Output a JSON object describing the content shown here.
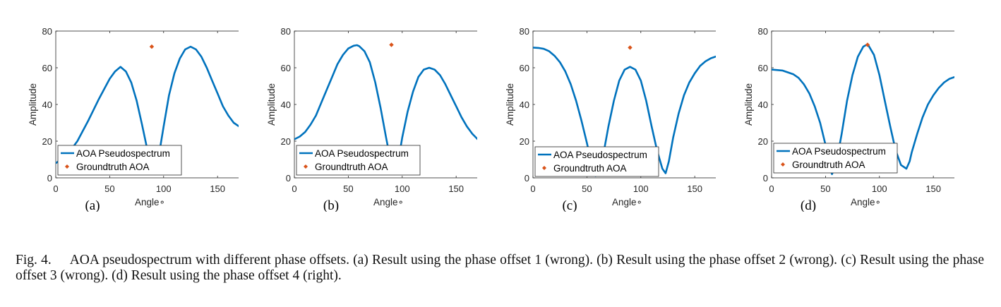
{
  "figure": {
    "number": "Fig. 4.",
    "caption": "AOA pseudospectrum with different phase offsets. (a) Result using the phase offset 1 (wrong). (b) Result using the phase offset 2 (wrong). (c) Result using the phase offset 3 (wrong). (d) Result using the phase offset 4 (right)."
  },
  "colors": {
    "spectrum": "#0072BD",
    "groundtruth": "#D95319",
    "axis": "#262626"
  },
  "chart_data": [
    {
      "type": "line",
      "sublabel": "(a)",
      "xlabel": "Angle∘",
      "ylabel": "Amplitude",
      "xlim": [
        0,
        180
      ],
      "ylim": [
        0,
        80
      ],
      "xticks": [
        0,
        50,
        100,
        150
      ],
      "yticks": [
        0,
        20,
        40,
        60,
        80
      ],
      "legend": {
        "placement": "bottom-left",
        "entries": [
          "AOA Pseudospectrum",
          "Groundtruth AOA"
        ]
      },
      "series": [
        {
          "name": "AOA Pseudospectrum",
          "x": [
            0,
            10,
            20,
            30,
            40,
            50,
            55,
            60,
            65,
            70,
            75,
            80,
            85,
            90,
            92,
            95,
            100,
            105,
            110,
            115,
            120,
            125,
            130,
            135,
            140,
            145,
            150,
            155,
            160,
            165,
            170,
            175,
            180
          ],
          "y": [
            8,
            12,
            20,
            31,
            43,
            54,
            58,
            60.5,
            58,
            52,
            42,
            29,
            15,
            3,
            2,
            10,
            28,
            45,
            57,
            65,
            70,
            71.5,
            70,
            66,
            60,
            53,
            46,
            39,
            34,
            30,
            28,
            27.5,
            27.5
          ]
        },
        {
          "name": "Groundtruth AOA",
          "x": [
            89
          ],
          "y": [
            71.5
          ]
        }
      ]
    },
    {
      "type": "line",
      "sublabel": "(b)",
      "xlabel": "Angle∘",
      "ylabel": "Amplitude",
      "xlim": [
        0,
        180
      ],
      "ylim": [
        0,
        80
      ],
      "xticks": [
        0,
        50,
        100,
        150
      ],
      "yticks": [
        0,
        20,
        40,
        60,
        80
      ],
      "legend": {
        "placement": "bottom-left",
        "entries": [
          "AOA Pseudospectrum",
          "Groundtruth AOA"
        ]
      },
      "series": [
        {
          "name": "AOA Pseudospectrum",
          "x": [
            0,
            5,
            10,
            15,
            20,
            25,
            30,
            35,
            40,
            45,
            50,
            55,
            58,
            60,
            65,
            70,
            75,
            80,
            85,
            90,
            93,
            96,
            100,
            105,
            110,
            115,
            120,
            125,
            130,
            135,
            140,
            145,
            150,
            155,
            160,
            165,
            170,
            175,
            180
          ],
          "y": [
            21,
            22.5,
            25,
            29,
            34,
            41,
            48,
            55,
            62,
            67,
            70.5,
            72,
            72.3,
            71.8,
            69,
            63,
            52,
            38,
            22,
            7,
            2,
            8,
            22,
            36,
            47,
            55,
            59,
            60,
            59,
            56,
            51,
            45,
            39,
            33,
            28,
            24,
            21,
            19,
            18
          ]
        },
        {
          "name": "Groundtruth AOA",
          "x": [
            90
          ],
          "y": [
            72.5
          ]
        }
      ]
    },
    {
      "type": "line",
      "sublabel": "(c)",
      "xlabel": "Angle∘",
      "ylabel": "Amplitude",
      "xlim": [
        0,
        180
      ],
      "ylim": [
        0,
        80
      ],
      "xticks": [
        0,
        50,
        100,
        150
      ],
      "yticks": [
        0,
        20,
        40,
        60,
        80
      ],
      "legend": {
        "placement": "bottom-left",
        "entries": [
          "AOA Pseudospectrum",
          "Groundtruth AOA"
        ]
      },
      "series": [
        {
          "name": "AOA Pseudospectrum",
          "x": [
            0,
            5,
            10,
            15,
            20,
            25,
            30,
            35,
            40,
            45,
            50,
            55,
            58,
            62,
            65,
            70,
            75,
            80,
            85,
            90,
            95,
            100,
            105,
            110,
            115,
            120,
            123,
            126,
            130,
            135,
            140,
            145,
            150,
            155,
            160,
            165,
            170,
            175,
            180
          ],
          "y": [
            71,
            70.8,
            70.3,
            69,
            66.5,
            63,
            58,
            51,
            42,
            31,
            19,
            6,
            1,
            3,
            12,
            28,
            42,
            53,
            59,
            60.5,
            59,
            53,
            42,
            28,
            15,
            5,
            2.5,
            9,
            22,
            35,
            45,
            52,
            57,
            61,
            63.5,
            65.2,
            66.2,
            66.8,
            67
          ]
        },
        {
          "name": "Groundtruth AOA",
          "x": [
            90
          ],
          "y": [
            71
          ]
        }
      ]
    },
    {
      "type": "line",
      "sublabel": "(d)",
      "xlabel": "Angle∘",
      "ylabel": "Amplitude",
      "xlim": [
        0,
        180
      ],
      "ylim": [
        0,
        80
      ],
      "xticks": [
        0,
        50,
        100,
        150
      ],
      "yticks": [
        0,
        20,
        40,
        60,
        80
      ],
      "legend": {
        "placement": "bottom-left",
        "entries": [
          "AOA Pseudospectrum",
          "Groundtruth AOA"
        ]
      },
      "series": [
        {
          "name": "AOA Pseudospectrum",
          "x": [
            0,
            10,
            20,
            25,
            30,
            35,
            40,
            45,
            50,
            53,
            56,
            60,
            65,
            70,
            75,
            80,
            85,
            88,
            90,
            95,
            100,
            105,
            110,
            115,
            120,
            125,
            128,
            130,
            135,
            140,
            145,
            150,
            155,
            160,
            165,
            170,
            175,
            180
          ],
          "y": [
            59,
            58.5,
            56.5,
            54.5,
            51,
            46,
            39,
            30,
            18,
            8,
            2,
            8,
            24,
            42,
            56,
            66,
            71.5,
            72.5,
            72,
            67,
            56,
            42,
            28,
            15,
            7,
            5,
            9,
            14,
            24,
            33,
            40,
            45,
            49,
            52,
            54,
            55,
            55.5,
            56
          ]
        },
        {
          "name": "Groundtruth AOA",
          "x": [
            89
          ],
          "y": [
            72.5
          ]
        }
      ]
    }
  ]
}
